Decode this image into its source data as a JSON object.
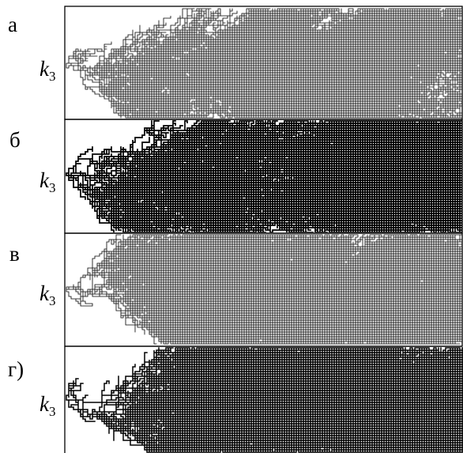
{
  "panels": [
    {
      "label": "а",
      "axis_symbol": "k",
      "axis_subscript": "3"
    },
    {
      "label": "б",
      "axis_symbol": "k",
      "axis_subscript": "3"
    },
    {
      "label": "в",
      "axis_symbol": "k",
      "axis_subscript": "3"
    },
    {
      "label": "г)",
      "axis_symbol": "k",
      "axis_subscript": "3"
    }
  ]
}
